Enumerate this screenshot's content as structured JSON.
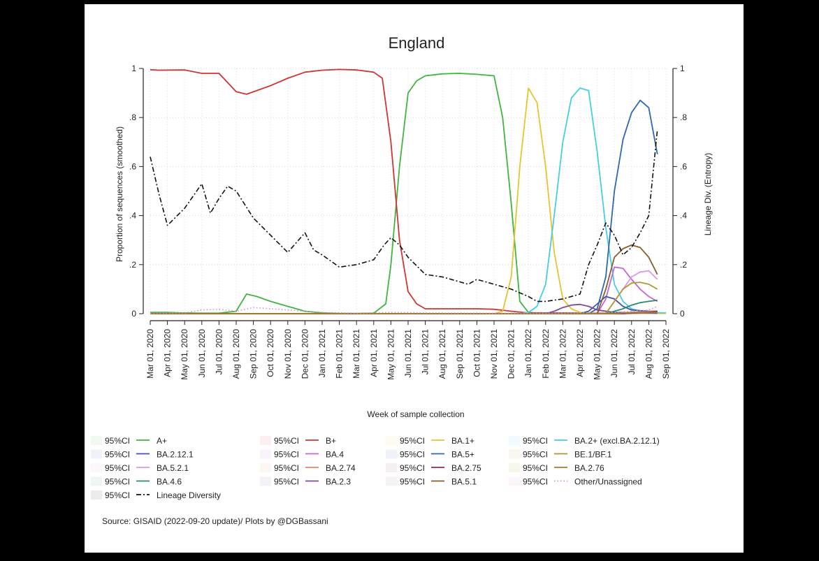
{
  "source_note": "Source: GISAID (2022-09-20 update)/ Plots by @DGBassani",
  "chart_data": {
    "type": "line",
    "title": "England",
    "xlabel": "Week of sample collection",
    "ylabel": "Proportion of sequences (smoothed)",
    "y2label": "Lineage Div. (Entropy)",
    "ylim": [
      0,
      1
    ],
    "y2lim": [
      0,
      1
    ],
    "yticks": [
      {
        "value": 0,
        "label": "0"
      },
      {
        "value": 0.2,
        "label": ".2"
      },
      {
        "value": 0.4,
        "label": ".4"
      },
      {
        "value": 0.6,
        "label": ".6"
      },
      {
        "value": 0.8,
        "label": ".8"
      },
      {
        "value": 1,
        "label": "1"
      }
    ],
    "grid": true,
    "legend_position": "bottom",
    "x_months": [
      "Mar 01, 2020",
      "Apr 01, 2020",
      "May 01, 2020",
      "Jun 01, 2020",
      "Jul 01, 2020",
      "Aug 01, 2020",
      "Sep 01, 2020",
      "Oct 01, 2020",
      "Nov 01, 2020",
      "Dec 01, 2020",
      "Jan 01, 2021",
      "Feb 01, 2021",
      "Mar 01, 2021",
      "Apr 01, 2021",
      "May 01, 2021",
      "Jun 01, 2021",
      "Jul 01, 2021",
      "Aug 01, 2021",
      "Sep 01, 2021",
      "Oct 01, 2021",
      "Nov 01, 2021",
      "Dec 01, 2021",
      "Jan 01, 2022",
      "Feb 01, 2022",
      "Mar 01, 2022",
      "Apr 01, 2022",
      "May 01, 2022",
      "Jun 01, 2022",
      "Jul 01, 2022",
      "Aug 01, 2022",
      "Sep 01, 2022"
    ],
    "legend_ci_label": "95%CI",
    "series": [
      {
        "name": "A+",
        "color": "#3fb53f",
        "style": "solid",
        "points": [
          [
            0,
            0.005
          ],
          [
            1,
            0.005
          ],
          [
            2,
            0.003
          ],
          [
            3,
            0.002
          ],
          [
            4,
            0.002
          ],
          [
            5,
            0.01
          ],
          [
            5.6,
            0.08
          ],
          [
            6.2,
            0.07
          ],
          [
            7,
            0.05
          ],
          [
            8,
            0.03
          ],
          [
            9,
            0.01
          ],
          [
            10,
            0.003
          ],
          [
            11,
            0.001
          ],
          [
            12,
            0.001
          ],
          [
            13,
            0.002
          ],
          [
            13.7,
            0.04
          ],
          [
            14,
            0.2
          ],
          [
            14.5,
            0.6
          ],
          [
            15,
            0.9
          ],
          [
            15.5,
            0.95
          ],
          [
            16,
            0.97
          ],
          [
            17,
            0.978
          ],
          [
            18,
            0.98
          ],
          [
            19,
            0.976
          ],
          [
            20,
            0.97
          ],
          [
            20.5,
            0.8
          ],
          [
            21,
            0.45
          ],
          [
            21.5,
            0.05
          ],
          [
            22,
            0.005
          ],
          [
            23,
            0.001
          ],
          [
            30,
            0.001
          ]
        ]
      },
      {
        "name": "B+",
        "color": "#cf3434",
        "style": "solid",
        "points": [
          [
            0,
            0.995
          ],
          [
            0.5,
            0.993
          ],
          [
            2,
            0.994
          ],
          [
            3,
            0.98
          ],
          [
            4,
            0.98
          ],
          [
            5,
            0.905
          ],
          [
            5.6,
            0.895
          ],
          [
            6.2,
            0.91
          ],
          [
            7,
            0.93
          ],
          [
            8,
            0.96
          ],
          [
            9,
            0.985
          ],
          [
            10,
            0.993
          ],
          [
            11,
            0.996
          ],
          [
            12,
            0.994
          ],
          [
            13,
            0.985
          ],
          [
            13.5,
            0.96
          ],
          [
            14,
            0.7
          ],
          [
            14.5,
            0.3
          ],
          [
            15,
            0.09
          ],
          [
            15.5,
            0.04
          ],
          [
            16,
            0.02
          ],
          [
            17,
            0.02
          ],
          [
            18,
            0.02
          ],
          [
            19,
            0.02
          ],
          [
            20,
            0.018
          ],
          [
            21,
            0.01
          ],
          [
            22,
            0.003
          ],
          [
            30,
            0.002
          ]
        ]
      },
      {
        "name": "BA.1+",
        "color": "#e8c32e",
        "style": "solid",
        "points": [
          [
            0,
            0
          ],
          [
            20,
            0
          ],
          [
            20.5,
            0.01
          ],
          [
            21,
            0.15
          ],
          [
            21.5,
            0.6
          ],
          [
            22,
            0.92
          ],
          [
            22.5,
            0.86
          ],
          [
            23,
            0.6
          ],
          [
            23.5,
            0.25
          ],
          [
            24,
            0.06
          ],
          [
            24.5,
            0.02
          ],
          [
            25,
            0.005
          ],
          [
            26,
            0.002
          ],
          [
            30,
            0.001
          ]
        ]
      },
      {
        "name": "BA.2+ (excl.BA.2.12.1)",
        "color": "#44cfe0",
        "style": "solid",
        "points": [
          [
            0,
            0
          ],
          [
            21.5,
            0
          ],
          [
            22,
            0.005
          ],
          [
            22.5,
            0.03
          ],
          [
            23,
            0.12
          ],
          [
            23.5,
            0.4
          ],
          [
            24,
            0.7
          ],
          [
            24.5,
            0.88
          ],
          [
            25,
            0.92
          ],
          [
            25.5,
            0.91
          ],
          [
            26,
            0.66
          ],
          [
            26.5,
            0.35
          ],
          [
            27,
            0.12
          ],
          [
            27.5,
            0.05
          ],
          [
            28,
            0.02
          ],
          [
            28.5,
            0.01
          ],
          [
            29,
            0.005
          ],
          [
            30,
            0.003
          ]
        ]
      },
      {
        "name": "BA.5+",
        "color": "#2f67b0",
        "style": "solid",
        "points": [
          [
            0,
            0
          ],
          [
            25.5,
            0
          ],
          [
            26,
            0.02
          ],
          [
            26.5,
            0.15
          ],
          [
            27,
            0.5
          ],
          [
            27.5,
            0.71
          ],
          [
            28,
            0.82
          ],
          [
            28.5,
            0.87
          ],
          [
            29,
            0.84
          ],
          [
            29.5,
            0.65
          ]
        ]
      },
      {
        "name": "BA.4",
        "color": "#c464d8",
        "style": "solid",
        "points": [
          [
            0,
            0
          ],
          [
            26,
            0
          ],
          [
            26.5,
            0.06
          ],
          [
            27,
            0.19
          ],
          [
            27.5,
            0.185
          ],
          [
            28,
            0.14
          ],
          [
            28.5,
            0.1
          ],
          [
            29,
            0.07
          ],
          [
            29.5,
            0.05
          ]
        ]
      },
      {
        "name": "BA.5.2.1",
        "color": "#d99aea",
        "style": "solid",
        "points": [
          [
            0,
            0
          ],
          [
            26.5,
            0
          ],
          [
            27,
            0.05
          ],
          [
            27.5,
            0.1
          ],
          [
            28,
            0.15
          ],
          [
            28.5,
            0.17
          ],
          [
            29,
            0.175
          ],
          [
            29.5,
            0.14
          ]
        ]
      },
      {
        "name": "BA.2.12.1",
        "color": "#3c53b5",
        "style": "solid",
        "points": [
          [
            0,
            0
          ],
          [
            25,
            0
          ],
          [
            25.5,
            0.01
          ],
          [
            26,
            0.04
          ],
          [
            26.5,
            0.07
          ],
          [
            27,
            0.06
          ],
          [
            27.5,
            0.03
          ],
          [
            28,
            0.015
          ],
          [
            29,
            0.01
          ],
          [
            29.5,
            0.01
          ]
        ]
      },
      {
        "name": "BA.2.3",
        "color": "#7b4aa0",
        "style": "solid",
        "points": [
          [
            0,
            0
          ],
          [
            23,
            0
          ],
          [
            23.5,
            0.01
          ],
          [
            24,
            0.025
          ],
          [
            24.5,
            0.035
          ],
          [
            25,
            0.038
          ],
          [
            25.5,
            0.03
          ],
          [
            26,
            0.015
          ],
          [
            27,
            0.005
          ],
          [
            29.5,
            0.002
          ]
        ]
      },
      {
        "name": "BE.1/BF.1",
        "color": "#b2962e",
        "style": "solid",
        "points": [
          [
            0,
            0
          ],
          [
            26.5,
            0
          ],
          [
            27,
            0.05
          ],
          [
            27.5,
            0.1
          ],
          [
            28,
            0.125
          ],
          [
            28.5,
            0.128
          ],
          [
            29,
            0.12
          ],
          [
            29.5,
            0.1
          ]
        ]
      },
      {
        "name": "BA.5.1",
        "color": "#8b5d2e",
        "style": "solid",
        "points": [
          [
            0,
            0
          ],
          [
            26,
            0
          ],
          [
            26.5,
            0.1
          ],
          [
            27,
            0.23
          ],
          [
            27.5,
            0.265
          ],
          [
            28,
            0.28
          ],
          [
            28.5,
            0.27
          ],
          [
            29,
            0.23
          ],
          [
            29.5,
            0.16
          ]
        ]
      },
      {
        "name": "BA.4.6",
        "color": "#2a8a74",
        "style": "solid",
        "points": [
          [
            0,
            0
          ],
          [
            26.5,
            0
          ],
          [
            27,
            0.01
          ],
          [
            27.5,
            0.02
          ],
          [
            28,
            0.035
          ],
          [
            28.5,
            0.045
          ],
          [
            29,
            0.05
          ],
          [
            29.5,
            0.055
          ]
        ]
      },
      {
        "name": "BA.2.74",
        "color": "#e0885e",
        "style": "solid",
        "points": [
          [
            0,
            0
          ],
          [
            27,
            0
          ],
          [
            27.5,
            0.003
          ],
          [
            28,
            0.006
          ],
          [
            29,
            0.008
          ],
          [
            29.5,
            0.01
          ]
        ]
      },
      {
        "name": "BA.2.75",
        "color": "#8b2f4b",
        "style": "solid",
        "points": [
          [
            0,
            0
          ],
          [
            27.5,
            0
          ],
          [
            28,
            0.002
          ],
          [
            29,
            0.005
          ],
          [
            29.5,
            0.01
          ]
        ]
      },
      {
        "name": "BA.2.76",
        "color": "#a57c32",
        "style": "solid",
        "points": [
          [
            0,
            0
          ],
          [
            27,
            0
          ],
          [
            27.5,
            0.003
          ],
          [
            28,
            0.004
          ],
          [
            29,
            0.004
          ],
          [
            29.5,
            0.005
          ]
        ]
      },
      {
        "name": "Other/Unassigned",
        "color": "#d68bd6",
        "style": "dotted",
        "points": [
          [
            0,
            0.002
          ],
          [
            2,
            0.003
          ],
          [
            3,
            0.015
          ],
          [
            4,
            0.018
          ],
          [
            5,
            0.01
          ],
          [
            6,
            0.025
          ],
          [
            7,
            0.02
          ],
          [
            8,
            0.015
          ],
          [
            9,
            0.01
          ],
          [
            10,
            0.005
          ],
          [
            12,
            0.002
          ],
          [
            14,
            0.005
          ],
          [
            16,
            0.003
          ],
          [
            20,
            0.002
          ],
          [
            24,
            0.002
          ],
          [
            27,
            0.005
          ],
          [
            29,
            0.015
          ],
          [
            29.5,
            0.03
          ]
        ]
      },
      {
        "name": "Lineage Diversity",
        "color": "#111111",
        "style": "dashdot",
        "points": [
          [
            0,
            0.64
          ],
          [
            0.5,
            0.49
          ],
          [
            1,
            0.36
          ],
          [
            2,
            0.43
          ],
          [
            3,
            0.53
          ],
          [
            3.5,
            0.41
          ],
          [
            4,
            0.47
          ],
          [
            4.5,
            0.52
          ],
          [
            5,
            0.5
          ],
          [
            6,
            0.39
          ],
          [
            7,
            0.32
          ],
          [
            8,
            0.25
          ],
          [
            9,
            0.33
          ],
          [
            9.5,
            0.26
          ],
          [
            10,
            0.24
          ],
          [
            11,
            0.19
          ],
          [
            12,
            0.2
          ],
          [
            13,
            0.22
          ],
          [
            13.6,
            0.28
          ],
          [
            14,
            0.31
          ],
          [
            14.5,
            0.28
          ],
          [
            15,
            0.23
          ],
          [
            16,
            0.16
          ],
          [
            17,
            0.15
          ],
          [
            18,
            0.13
          ],
          [
            18.5,
            0.12
          ],
          [
            19,
            0.14
          ],
          [
            20,
            0.12
          ],
          [
            21,
            0.1
          ],
          [
            22,
            0.07
          ],
          [
            22.5,
            0.05
          ],
          [
            23,
            0.05
          ],
          [
            24,
            0.06
          ],
          [
            25,
            0.08
          ],
          [
            25.5,
            0.2
          ],
          [
            26,
            0.28
          ],
          [
            26.5,
            0.37
          ],
          [
            27,
            0.32
          ],
          [
            27.5,
            0.24
          ],
          [
            28,
            0.27
          ],
          [
            28.5,
            0.33
          ],
          [
            29,
            0.4
          ],
          [
            29.5,
            0.75
          ]
        ]
      }
    ],
    "legend_rows": [
      [
        "A+",
        "B+",
        "BA.1+",
        "BA.2+ (excl.BA.2.12.1)"
      ],
      [
        "BA.2.12.1",
        "BA.4",
        "BA.5+",
        "BE.1/BF.1"
      ],
      [
        "BA.5.2.1",
        "BA.2.74",
        "BA.2.75",
        "BA.2.76"
      ],
      [
        "BA.4.6",
        "BA.2.3",
        "BA.5.1",
        "Other/Unassigned"
      ],
      [
        "Lineage Diversity"
      ]
    ]
  }
}
